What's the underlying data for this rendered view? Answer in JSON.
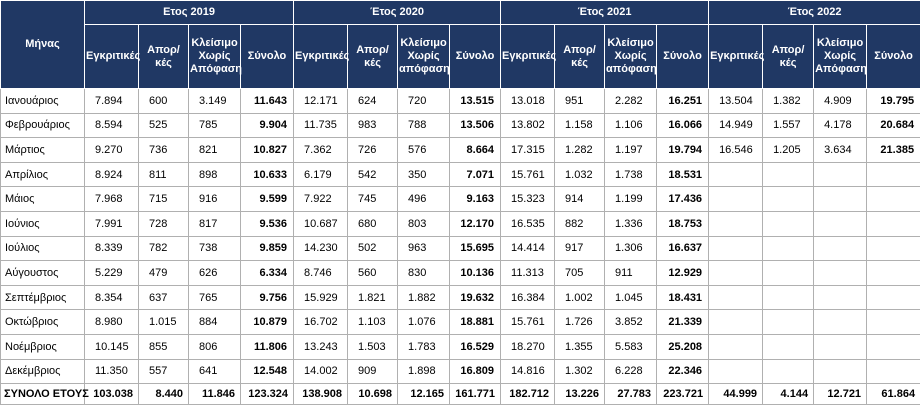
{
  "header": {
    "month_label": "Μήνας",
    "years": [
      "Ετος 2019",
      "Έτος 2020",
      "Έτος 2021",
      "Έτος 2022"
    ],
    "columns": [
      [
        "Εγκριτικές",
        "Απορ/κές",
        "Κλείσιμο Χωρίς Απόφαση",
        "Σύνολο"
      ],
      [
        "Εγκριτικές",
        "Απορ/κές",
        "Κλείσιμο Χωρίς απόφαση",
        "Σύνολο"
      ],
      [
        "Εγκριτικές",
        "Απορ/κές",
        "Κλείσιμο Χωρίς απόφαση",
        "Σύνολο"
      ],
      [
        "Εγκριτικές",
        "Απορ/κές",
        "Κλείσιμο Χωρίς Απόφαση",
        "Σύνολο"
      ]
    ]
  },
  "rows": [
    {
      "month": "Ιανουάριος",
      "values": [
        [
          "7.894",
          "600",
          "3.149",
          "11.643"
        ],
        [
          "12.171",
          "624",
          "720",
          "13.515"
        ],
        [
          "13.018",
          "951",
          "2.282",
          "16.251"
        ],
        [
          "13.504",
          "1.382",
          "4.909",
          "19.795"
        ]
      ]
    },
    {
      "month": "Φεβρουάριος",
      "values": [
        [
          "8.594",
          "525",
          "785",
          "9.904"
        ],
        [
          "11.735",
          "983",
          "788",
          "13.506"
        ],
        [
          "13.802",
          "1.158",
          "1.106",
          "16.066"
        ],
        [
          "14.949",
          "1.557",
          "4.178",
          "20.684"
        ]
      ]
    },
    {
      "month": "Μάρτιος",
      "values": [
        [
          "9.270",
          "736",
          "821",
          "10.827"
        ],
        [
          "7.362",
          "726",
          "576",
          "8.664"
        ],
        [
          "17.315",
          "1.282",
          "1.197",
          "19.794"
        ],
        [
          "16.546",
          "1.205",
          "3.634",
          "21.385"
        ]
      ]
    },
    {
      "month": "Απρίλιος",
      "values": [
        [
          "8.924",
          "811",
          "898",
          "10.633"
        ],
        [
          "6.179",
          "542",
          "350",
          "7.071"
        ],
        [
          "15.761",
          "1.032",
          "1.738",
          "18.531"
        ]
      ]
    },
    {
      "month": "Μάιος",
      "values": [
        [
          "7.968",
          "715",
          "916",
          "9.599"
        ],
        [
          "7.922",
          "745",
          "496",
          "9.163"
        ],
        [
          "15.323",
          "914",
          "1.199",
          "17.436"
        ]
      ]
    },
    {
      "month": "Ιούνιος",
      "values": [
        [
          "7.991",
          "728",
          "817",
          "9.536"
        ],
        [
          "10.687",
          "680",
          "803",
          "12.170"
        ],
        [
          "16.535",
          "882",
          "1.336",
          "18.753"
        ]
      ]
    },
    {
      "month": "Ιούλιος",
      "values": [
        [
          "8.339",
          "782",
          "738",
          "9.859"
        ],
        [
          "14.230",
          "502",
          "963",
          "15.695"
        ],
        [
          "14.414",
          "917",
          "1.306",
          "16.637"
        ]
      ]
    },
    {
      "month": "Αύγουστος",
      "values": [
        [
          "5.229",
          "479",
          "626",
          "6.334"
        ],
        [
          "8.746",
          "560",
          "830",
          "10.136"
        ],
        [
          "11.313",
          "705",
          "911",
          "12.929"
        ]
      ]
    },
    {
      "month": "Σεπτέμβριος",
      "values": [
        [
          "8.354",
          "637",
          "765",
          "9.756"
        ],
        [
          "15.929",
          "1.821",
          "1.882",
          "19.632"
        ],
        [
          "16.384",
          "1.002",
          "1.045",
          "18.431"
        ]
      ]
    },
    {
      "month": "Οκτώβριος",
      "values": [
        [
          "8.980",
          "1.015",
          "884",
          "10.879"
        ],
        [
          "16.702",
          "1.103",
          "1.076",
          "18.881"
        ],
        [
          "15.761",
          "1.726",
          "3.852",
          "21.339"
        ]
      ]
    },
    {
      "month": "Νοέμβριος",
      "values": [
        [
          "10.145",
          "855",
          "806",
          "11.806"
        ],
        [
          "13.243",
          "1.503",
          "1.783",
          "16.529"
        ],
        [
          "18.270",
          "1.355",
          "5.583",
          "25.208"
        ]
      ]
    },
    {
      "month": "Δεκέμβριος",
      "values": [
        [
          "11.350",
          "557",
          "641",
          "12.548"
        ],
        [
          "14.002",
          "909",
          "1.898",
          "16.809"
        ],
        [
          "14.816",
          "1.302",
          "6.228",
          "22.346"
        ]
      ]
    }
  ],
  "total": {
    "month": "ΣΥΝΟΛΟ ΕΤΟΥΣ",
    "values": [
      [
        "103.038",
        "8.440",
        "11.846",
        "123.324"
      ],
      [
        "138.908",
        "10.698",
        "12.165",
        "161.771"
      ],
      [
        "182.712",
        "13.226",
        "27.783",
        "223.721"
      ],
      [
        "44.999",
        "4.144",
        "12.721",
        "61.864"
      ]
    ]
  }
}
